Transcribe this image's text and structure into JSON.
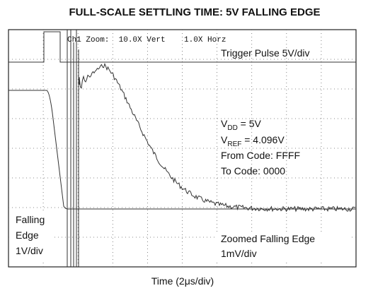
{
  "title": "FULL-SCALE SETTLING TIME: 5V FALLING EDGE",
  "scope_header": "Ch1 Zoom:  10.0X Vert    1.0X Horz",
  "annotations": {
    "trigger": "Trigger Pulse 5V/div",
    "vdd": {
      "base": "V",
      "sub": "DD",
      "rest": " = 5V"
    },
    "vref": {
      "base": "V",
      "sub": "REF",
      "rest": " = 4.096V"
    },
    "from_code": "From Code: FFFF",
    "to_code": "To Code: 0000",
    "falling_edge": [
      "Falling",
      "Edge",
      "1V/div"
    ],
    "zoomed": [
      "Zoomed Falling Edge",
      "1mV/div"
    ]
  },
  "x_axis_label": "Time (2μs/div)"
}
